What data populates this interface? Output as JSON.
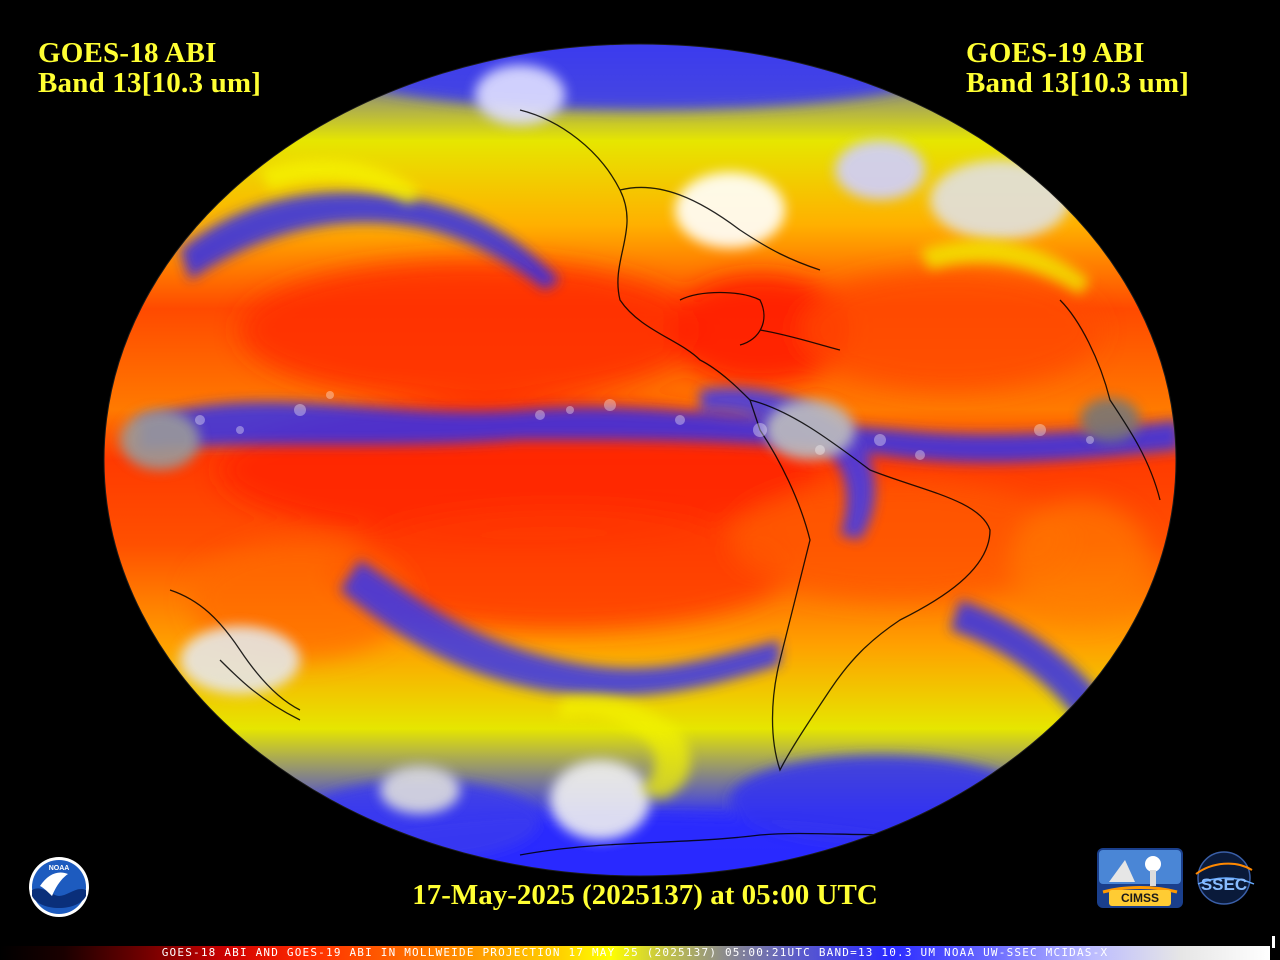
{
  "header": {
    "left_satellite": "GOES-18 ABI",
    "left_band": "Band 13[10.3 um]",
    "right_satellite": "GOES-19 ABI",
    "right_band": "Band 13[10.3 um]"
  },
  "footer": {
    "timestamp": "17-May-2025 (2025137) at 05:00 UTC",
    "colorbar_caption": "GOES-18 ABI AND GOES-19 ABI IN MOLLWEIDE PROJECTION 17 MAY 25 (2025137) 05:00:21UTC BAND=13 10.3 UM NOAA UW-SSEC MCIDAS-X"
  },
  "logos": {
    "noaa": "NOAA",
    "cimss": "CIMSS",
    "ssec": "SSEC"
  },
  "colors": {
    "title_text": "#ffff33",
    "background": "#000000",
    "warm_surface": "#ff3300",
    "moderate": "#ffa500",
    "cool": "#ffff00",
    "cold_clouds": "#2a2aff",
    "coldest_clouds": "#ffffff"
  }
}
